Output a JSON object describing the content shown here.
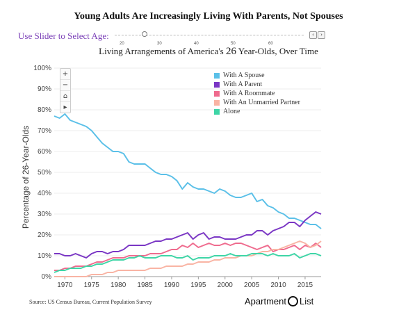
{
  "header": {
    "title": "Young Adults Are Increasingly Living With Parents, Not Spouses"
  },
  "slider": {
    "label": "Use Slider to Select Age:",
    "ticks": [
      "20",
      "30",
      "40",
      "50",
      "60"
    ],
    "selected_age": 26,
    "prev_symbol": "‹",
    "next_symbol": "›"
  },
  "zoom": {
    "in_symbol": "+",
    "out_symbol": "−",
    "home_symbol": "⌂",
    "pan_symbol": "▸"
  },
  "footer": {
    "source": "Source: US Census Bureau, Current Population Survey",
    "brand_left": "Apartment",
    "brand_right": "List"
  },
  "chart_data": {
    "type": "line",
    "title_prefix": "Living Arrangements of America's",
    "title_age": "26",
    "title_suffix": "Year-Olds, Over Time",
    "ylabel": "Percentage of 26-Year-Olds",
    "xlabel": "",
    "xlim": [
      1968,
      2018
    ],
    "ylim": [
      0,
      100
    ],
    "y_ticks": [
      "0%",
      "10%",
      "20%",
      "30%",
      "40%",
      "50%",
      "60%",
      "70%",
      "80%",
      "90%",
      "100%"
    ],
    "x_ticks": [
      "1970",
      "1975",
      "1980",
      "1985",
      "1990",
      "1995",
      "2000",
      "2005",
      "2010",
      "2015"
    ],
    "legend_position": "top-right",
    "x": [
      1968,
      1969,
      1970,
      1971,
      1972,
      1973,
      1974,
      1975,
      1976,
      1977,
      1978,
      1979,
      1980,
      1981,
      1982,
      1983,
      1984,
      1985,
      1986,
      1987,
      1988,
      1989,
      1990,
      1991,
      1992,
      1993,
      1994,
      1995,
      1996,
      1997,
      1998,
      1999,
      2000,
      2001,
      2002,
      2003,
      2004,
      2005,
      2006,
      2007,
      2008,
      2009,
      2010,
      2011,
      2012,
      2013,
      2014,
      2015,
      2016,
      2017,
      2018
    ],
    "series": [
      {
        "name": "With A Spouse",
        "color": "#5bc0e8",
        "values": [
          77,
          76,
          78,
          75,
          74,
          73,
          72,
          70,
          67,
          64,
          62,
          60,
          60,
          59,
          55,
          54,
          54,
          54,
          52,
          50,
          49,
          49,
          48,
          46,
          42,
          45,
          43,
          42,
          42,
          41,
          40,
          42,
          41,
          39,
          38,
          38,
          39,
          40,
          36,
          37,
          34,
          33,
          31,
          30,
          28,
          28,
          27,
          26,
          25,
          25,
          23
        ]
      },
      {
        "name": "With A Parent",
        "color": "#7a36c4",
        "values": [
          11,
          11,
          10,
          10,
          11,
          10,
          9,
          11,
          12,
          12,
          11,
          12,
          12,
          13,
          15,
          15,
          15,
          15,
          16,
          17,
          17,
          18,
          18,
          19,
          20,
          21,
          18,
          20,
          21,
          18,
          19,
          19,
          18,
          18,
          18,
          19,
          20,
          20,
          22,
          22,
          20,
          22,
          23,
          24,
          26,
          26,
          24,
          27,
          29,
          31,
          30
        ]
      },
      {
        "name": "With A Roommate",
        "color": "#ef6b8e",
        "values": [
          3,
          3,
          4,
          4,
          5,
          5,
          5,
          6,
          7,
          7,
          8,
          9,
          9,
          9,
          10,
          10,
          10,
          10,
          11,
          11,
          11,
          12,
          13,
          13,
          15,
          14,
          16,
          14,
          15,
          16,
          15,
          15,
          16,
          15,
          16,
          16,
          15,
          14,
          13,
          14,
          15,
          12,
          13,
          13,
          14,
          15,
          13,
          15,
          14,
          16,
          14
        ]
      },
      {
        "name": "With An Unmarried Partner",
        "color": "#f9b4a4",
        "values": [
          0,
          0,
          0,
          0,
          0,
          0,
          0,
          1,
          1,
          1,
          2,
          2,
          3,
          3,
          3,
          3,
          3,
          3,
          4,
          4,
          4,
          5,
          5,
          5,
          5,
          6,
          6,
          7,
          7,
          7,
          8,
          8,
          9,
          9,
          9,
          10,
          10,
          10,
          11,
          12,
          12,
          13,
          13,
          14,
          15,
          16,
          17,
          16,
          14,
          15,
          17
        ]
      },
      {
        "name": "Alone",
        "color": "#3ed5a6",
        "values": [
          2,
          3,
          3,
          4,
          4,
          4,
          5,
          5,
          6,
          6,
          7,
          8,
          8,
          8,
          9,
          9,
          10,
          9,
          9,
          9,
          10,
          10,
          10,
          9,
          9,
          10,
          8,
          9,
          9,
          9,
          10,
          10,
          10,
          11,
          10,
          10,
          10,
          11,
          11,
          11,
          10,
          11,
          10,
          10,
          10,
          11,
          9,
          10,
          11,
          11,
          10
        ]
      }
    ]
  }
}
